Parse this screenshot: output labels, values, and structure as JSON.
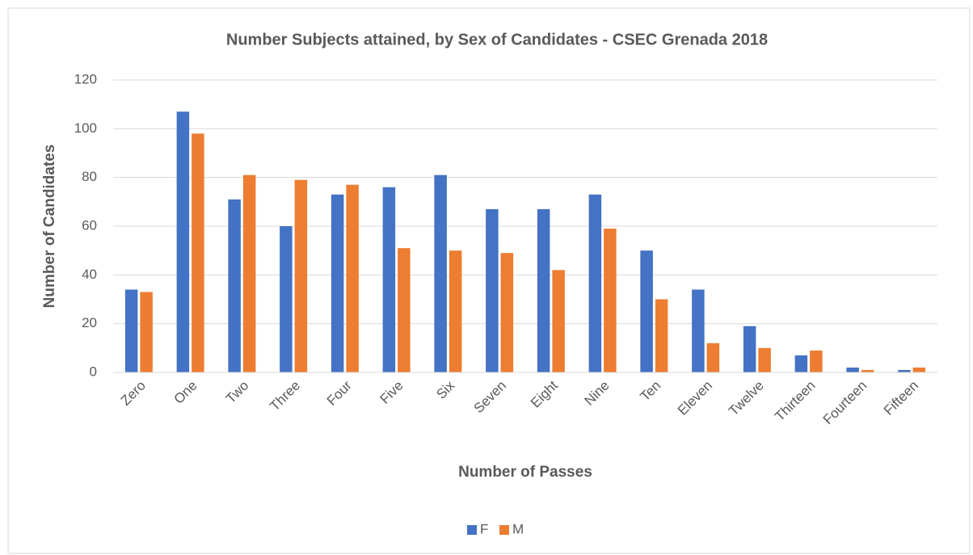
{
  "chart_data": {
    "type": "bar",
    "title": "Number  Subjects attained, by Sex of Candidates - CSEC Grenada 2018",
    "x_label": "Number of Passes",
    "y_label": "Number of Candidates",
    "categories": [
      "Zero",
      "One",
      "Two",
      "Three",
      "Four",
      "Five",
      "Six",
      "Seven",
      "Eight",
      "Nine",
      "Ten",
      "Eleven",
      "Twelve",
      "Thirteen",
      "Fourteen",
      "Fifteen"
    ],
    "series": [
      {
        "name": "F",
        "color": "#4472c4",
        "values": [
          34,
          107,
          71,
          60,
          73,
          76,
          81,
          67,
          67,
          73,
          50,
          34,
          19,
          7,
          2,
          1
        ]
      },
      {
        "name": "M",
        "color": "#ed7d31",
        "values": [
          33,
          98,
          81,
          79,
          77,
          51,
          50,
          49,
          42,
          59,
          30,
          12,
          10,
          9,
          1,
          2
        ]
      }
    ],
    "ylim": [
      0,
      120
    ],
    "yticks": [
      0,
      20,
      40,
      60,
      80,
      100,
      120
    ],
    "grid": true,
    "legend": "bottom"
  }
}
